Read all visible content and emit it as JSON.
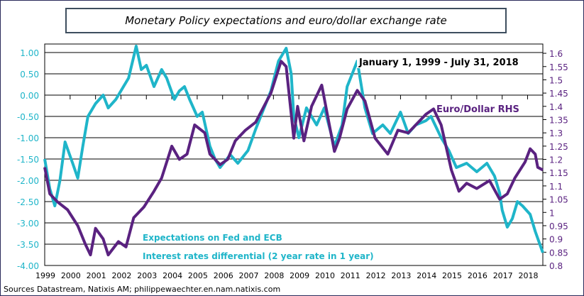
{
  "chart_data": {
    "type": "line",
    "title": "Monetary Policy  expectations and euro/dollar exchange rate",
    "xlim": [
      1999,
      2018.6
    ],
    "x_ticks": [
      "1999",
      "2000",
      "2001",
      "2002",
      "2003",
      "2004",
      "2005",
      "2006",
      "2007",
      "2008",
      "2009",
      "2010",
      "2011",
      "2012",
      "2013",
      "2014",
      "2015",
      "2016",
      "2017",
      "2018"
    ],
    "y_left": {
      "lim": [
        -4.0,
        1.2
      ],
      "ticks": [
        "1.00",
        "0.50",
        "0.00",
        "-0.50",
        "-1.00",
        "-1.50",
        "-2.00",
        "-2.50",
        "-3.00",
        "-3.50",
        "-4.00"
      ],
      "tick_values": [
        1,
        0.5,
        0,
        -0.5,
        -1,
        -1.5,
        -2,
        -2.5,
        -3,
        -3.5,
        -4
      ],
      "color": "#1fb5c9"
    },
    "y_right": {
      "lim": [
        0.8,
        1.635
      ],
      "ticks": [
        "1.6",
        "1.55",
        "1.5",
        "1.45",
        "1.4",
        "1.35",
        "1.3",
        "1.25",
        "1.2",
        "1.15",
        "1.1",
        "1.05",
        "1",
        "0.95",
        "0.9",
        "0.85",
        "0.8"
      ],
      "tick_values": [
        1.6,
        1.55,
        1.5,
        1.45,
        1.4,
        1.35,
        1.3,
        1.25,
        1.2,
        1.15,
        1.1,
        1.05,
        1,
        0.95,
        0.9,
        0.85,
        0.8
      ],
      "color": "#5a2280"
    },
    "grid": true,
    "annotations": {
      "period": "January 1, 1999 - July 31, 2018",
      "euro_label": "Euro/Dollar RHS",
      "cyan_label_1": "Expectations on Fed and ECB",
      "cyan_label_2": "Interest rates differential  (2 year rate in 1 year)"
    },
    "series": [
      {
        "axis": "left",
        "color": "#1fb5c9",
        "x": [
          1999.0,
          1999.2,
          1999.4,
          1999.6,
          1999.8,
          2000.1,
          2000.3,
          2000.5,
          2000.7,
          2001.0,
          2001.3,
          2001.5,
          2001.8,
          2002.1,
          2002.3,
          2002.5,
          2002.6,
          2002.8,
          2003.0,
          2003.3,
          2003.6,
          2003.8,
          2004.1,
          2004.3,
          2004.5,
          2004.7,
          2005.0,
          2005.2,
          2005.5,
          2005.7,
          2005.9,
          2006.3,
          2006.6,
          2007.0,
          2007.3,
          2007.5,
          2007.9,
          2008.2,
          2008.4,
          2008.5,
          2008.7,
          2008.8,
          2009.0,
          2009.3,
          2009.7,
          2010.0,
          2010.4,
          2010.7,
          2010.9,
          2011.1,
          2011.3,
          2011.6,
          2011.9,
          2012.3,
          2012.6,
          2013.0,
          2013.3,
          2013.6,
          2014.0,
          2014.2,
          2014.6,
          2014.9,
          2015.2,
          2015.6,
          2016.0,
          2016.4,
          2016.7,
          2016.9,
          2017.0,
          2017.2,
          2017.4,
          2017.6,
          2017.8,
          2018.1,
          2018.3,
          2018.6
        ],
        "y": [
          -1.5,
          -2.2,
          -2.6,
          -2.0,
          -1.1,
          -1.6,
          -1.95,
          -1.2,
          -0.5,
          -0.2,
          0.0,
          -0.3,
          -0.1,
          0.2,
          0.4,
          0.9,
          1.15,
          0.6,
          0.7,
          0.2,
          0.6,
          0.4,
          -0.1,
          0.1,
          0.2,
          -0.1,
          -0.5,
          -0.4,
          -1.2,
          -1.5,
          -1.7,
          -1.4,
          -1.6,
          -1.3,
          -0.8,
          -0.5,
          0.1,
          0.8,
          1.0,
          1.1,
          0.5,
          -0.5,
          -1.0,
          -0.3,
          -0.7,
          -0.3,
          -1.2,
          -0.7,
          0.2,
          0.5,
          0.8,
          -0.3,
          -0.9,
          -0.7,
          -0.9,
          -0.4,
          -0.9,
          -0.7,
          -0.6,
          -0.5,
          -1.0,
          -1.3,
          -1.7,
          -1.6,
          -1.8,
          -1.6,
          -1.9,
          -2.3,
          -2.7,
          -3.1,
          -2.9,
          -2.5,
          -2.6,
          -2.8,
          -3.2,
          -3.7
        ]
      },
      {
        "axis": "right",
        "color": "#5a2280",
        "x": [
          1999.0,
          1999.2,
          1999.5,
          1999.9,
          2000.3,
          2000.6,
          2000.8,
          2001.0,
          2001.3,
          2001.5,
          2001.9,
          2002.2,
          2002.5,
          2002.9,
          2003.3,
          2003.6,
          2004.0,
          2004.3,
          2004.6,
          2004.9,
          2005.3,
          2005.5,
          2005.9,
          2006.2,
          2006.5,
          2006.9,
          2007.3,
          2007.9,
          2008.3,
          2008.5,
          2008.8,
          2008.95,
          2009.2,
          2009.5,
          2009.9,
          2010.4,
          2010.6,
          2010.9,
          2011.3,
          2011.6,
          2012.0,
          2012.5,
          2012.9,
          2013.3,
          2013.6,
          2014.0,
          2014.3,
          2014.6,
          2015.0,
          2015.3,
          2015.6,
          2016.0,
          2016.5,
          2016.9,
          2017.2,
          2017.5,
          2017.9,
          2018.1,
          2018.3,
          2018.4,
          2018.6
        ],
        "y": [
          1.17,
          1.07,
          1.04,
          1.01,
          0.95,
          0.88,
          0.84,
          0.94,
          0.9,
          0.84,
          0.89,
          0.87,
          0.98,
          1.02,
          1.08,
          1.13,
          1.25,
          1.2,
          1.22,
          1.33,
          1.3,
          1.22,
          1.18,
          1.2,
          1.27,
          1.31,
          1.34,
          1.45,
          1.57,
          1.55,
          1.28,
          1.4,
          1.27,
          1.4,
          1.48,
          1.23,
          1.28,
          1.39,
          1.46,
          1.42,
          1.28,
          1.22,
          1.31,
          1.3,
          1.33,
          1.37,
          1.39,
          1.33,
          1.16,
          1.08,
          1.11,
          1.09,
          1.12,
          1.05,
          1.07,
          1.13,
          1.19,
          1.24,
          1.22,
          1.17,
          1.16
        ]
      }
    ]
  },
  "footer": {
    "source": "Sources Datastream, Natixis AM; philippewaechter.en.nam.natixis.com"
  }
}
